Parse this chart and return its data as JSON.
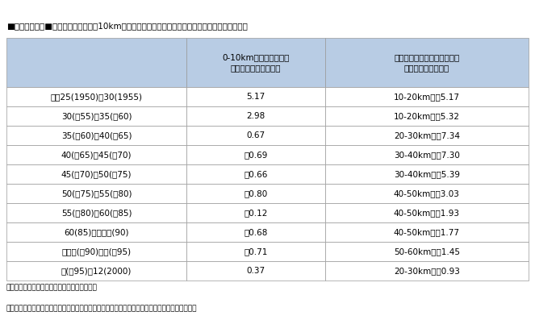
{
  "title": "■表１－４－１■　東京駅からの０－10km帯の人口増加率及び人口増加率がピークの距離帯の推移",
  "header_col1": "",
  "header_col2": "0-10km帯の人口増加率\n（年率換算，単位％）",
  "header_col3": "人口増加がピークの距離帯と\nその年増加率（％）",
  "rows": [
    [
      "昭和25(1950)〜30(1955)",
      "5.17",
      "10-20km圏　5.17"
    ],
    [
      "30(　55)〜35(　60)",
      "2.98",
      "10-20km圏　5.32"
    ],
    [
      "35(　60)〜40(　65)",
      "0.67",
      "20-30km圏　7.34"
    ],
    [
      "40(　65)〜45(　70)",
      "－0.69",
      "30-40km圏　7.30"
    ],
    [
      "45(　70)〜50(　75)",
      "－0.66",
      "30-40km圏　5.39"
    ],
    [
      "50(　75)〜55(　80)",
      "－0.80",
      "40-50km圏　3.03"
    ],
    [
      "55(　80)〜60(　85)",
      "－0.12",
      "40-50km圏　1.93"
    ],
    [
      "60(85)〜平成２(90)",
      "－0.68",
      "40-50km圏　1.77"
    ],
    [
      "平成２(　90)〜７(　95)",
      "－0.71",
      "50-60km圏　1.45"
    ],
    [
      "７(　95)〜12(2000)",
      "0.37",
      "20-30km圏　0.93"
    ]
  ],
  "notes": [
    "（注）　１　各年次の国勢調査に基づき作成。",
    "　　　　２　東京駅と各市区町村の役所・役場との直線距離帯別に，当該市区町村の人口を集計。"
  ],
  "header_bg": "#b8cce4",
  "row_bg_odd": "#ffffff",
  "row_bg_even": "#ffffff",
  "border_color": "#999999",
  "title_color": "#000000",
  "text_color": "#000000"
}
